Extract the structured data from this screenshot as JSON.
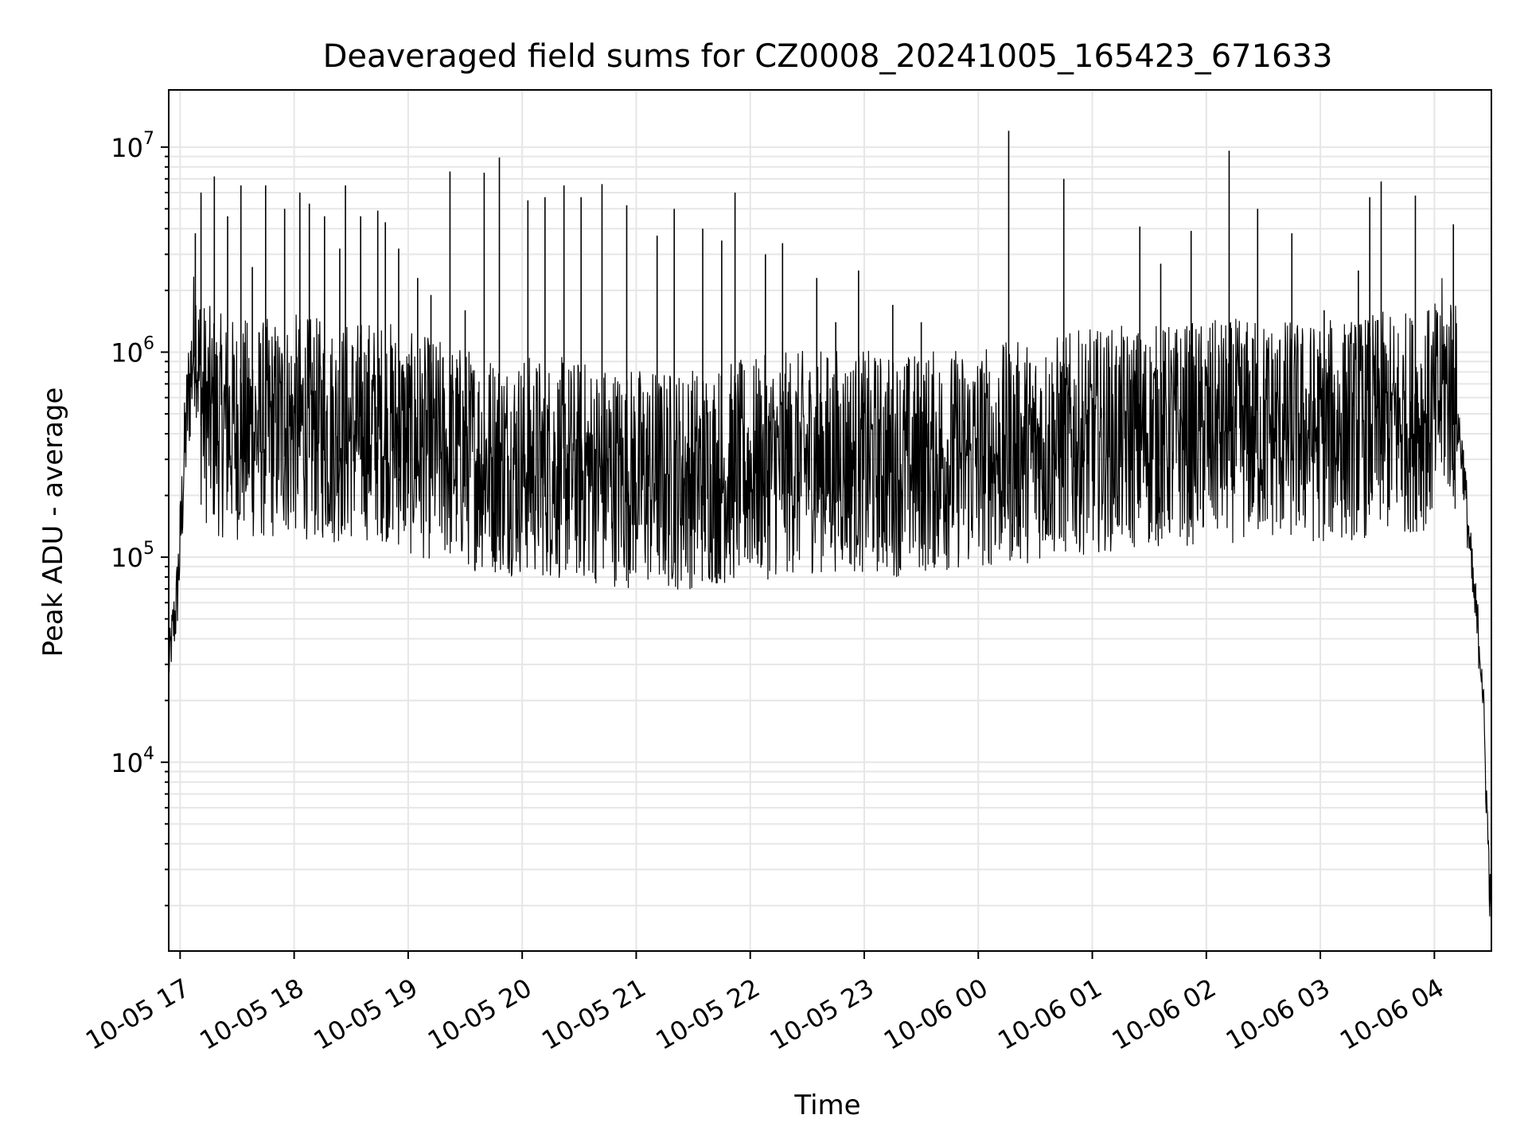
{
  "chart_data": {
    "type": "line",
    "title": "Deaveraged field sums for CZ0008_20241005_165423_671633",
    "xlabel": "Time",
    "ylabel": "Peak ADU - average",
    "y_scale": "log",
    "ylim": [
      1200,
      19000000
    ],
    "xlim": [
      "2024-10-05 16:54",
      "2024-10-06 04:30"
    ],
    "grid": true,
    "line_color": "#000000",
    "grid_color": "#e6e6e6",
    "x_ticks": [
      {
        "value": "2024-10-05 17:00",
        "label": "10-05 17"
      },
      {
        "value": "2024-10-05 18:00",
        "label": "10-05 18"
      },
      {
        "value": "2024-10-05 19:00",
        "label": "10-05 19"
      },
      {
        "value": "2024-10-05 20:00",
        "label": "10-05 20"
      },
      {
        "value": "2024-10-05 21:00",
        "label": "10-05 21"
      },
      {
        "value": "2024-10-05 22:00",
        "label": "10-05 22"
      },
      {
        "value": "2024-10-05 23:00",
        "label": "10-05 23"
      },
      {
        "value": "2024-10-06 00:00",
        "label": "10-06 00"
      },
      {
        "value": "2024-10-06 01:00",
        "label": "10-06 01"
      },
      {
        "value": "2024-10-06 02:00",
        "label": "10-06 02"
      },
      {
        "value": "2024-10-06 03:00",
        "label": "10-06 03"
      },
      {
        "value": "2024-10-06 04:00",
        "label": "10-06 04"
      }
    ],
    "y_ticks": [
      {
        "value": 10000,
        "base": "10",
        "exp": "4"
      },
      {
        "value": 100000,
        "base": "10",
        "exp": "5"
      },
      {
        "value": 1000000,
        "base": "10",
        "exp": "6"
      },
      {
        "value": 10000000,
        "base": "10",
        "exp": "7"
      }
    ],
    "series": [
      {
        "x": [
          "2024-10-05 16:54",
          "2024-10-05 16:56",
          "2024-10-05 16:58",
          "2024-10-05 17:00",
          "2024-10-05 17:02",
          "2024-10-05 17:04",
          "2024-10-05 17:06",
          "2024-10-05 17:08",
          "2024-10-05 17:10",
          "2024-10-05 17:12",
          "2024-10-05 17:15",
          "2024-10-05 17:20",
          "2024-10-05 17:30",
          "2024-10-05 17:40",
          "2024-10-05 17:50",
          "2024-10-05 18:00",
          "2024-10-05 18:10",
          "2024-10-05 18:20",
          "2024-10-05 18:30",
          "2024-10-05 18:40",
          "2024-10-05 18:50",
          "2024-10-05 19:00",
          "2024-10-05 19:15",
          "2024-10-05 19:30",
          "2024-10-05 19:45",
          "2024-10-05 20:00",
          "2024-10-05 20:15",
          "2024-10-05 20:30",
          "2024-10-05 20:45",
          "2024-10-05 21:00",
          "2024-10-05 21:15",
          "2024-10-05 21:30",
          "2024-10-05 21:45",
          "2024-10-05 22:00",
          "2024-10-05 22:15",
          "2024-10-05 22:30",
          "2024-10-05 22:45",
          "2024-10-05 23:00",
          "2024-10-05 23:15",
          "2024-10-05 23:30",
          "2024-10-05 23:45",
          "2024-10-06 00:00",
          "2024-10-06 00:15",
          "2024-10-06 00:30",
          "2024-10-06 00:45",
          "2024-10-06 01:00",
          "2024-10-06 01:15",
          "2024-10-06 01:30",
          "2024-10-06 01:45",
          "2024-10-06 02:00",
          "2024-10-06 02:15",
          "2024-10-06 02:30",
          "2024-10-06 02:45",
          "2024-10-06 03:00",
          "2024-10-06 03:15",
          "2024-10-06 03:30",
          "2024-10-06 03:45",
          "2024-10-06 04:00",
          "2024-10-06 04:05",
          "2024-10-06 04:10",
          "2024-10-06 04:15",
          "2024-10-06 04:20",
          "2024-10-06 04:25",
          "2024-10-06 04:30"
        ],
        "y": [
          30000,
          45000,
          60000,
          120000,
          300000,
          600000,
          900000,
          1500000,
          800000,
          600000,
          550000,
          500000,
          480000,
          470000,
          480000,
          500000,
          480000,
          460000,
          470000,
          480000,
          470000,
          400000,
          380000,
          350000,
          330000,
          320000,
          310000,
          300000,
          290000,
          280000,
          270000,
          280000,
          290000,
          300000,
          320000,
          330000,
          340000,
          330000,
          320000,
          330000,
          340000,
          350000,
          360000,
          380000,
          400000,
          420000,
          430000,
          440000,
          450000,
          460000,
          470000,
          480000,
          470000,
          460000,
          480000,
          500000,
          520000,
          550000,
          800000,
          700000,
          300000,
          80000,
          30000,
          1500
        ],
        "spikes": [
          [
            "2024-10-05 17:08",
            3800000
          ],
          [
            "2024-10-05 17:11",
            6000000
          ],
          [
            "2024-10-05 17:18",
            7200000
          ],
          [
            "2024-10-05 17:25",
            4600000
          ],
          [
            "2024-10-05 17:32",
            6500000
          ],
          [
            "2024-10-05 17:38",
            2600000
          ],
          [
            "2024-10-05 17:45",
            6500000
          ],
          [
            "2024-10-05 17:55",
            5000000
          ],
          [
            "2024-10-05 18:03",
            6000000
          ],
          [
            "2024-10-05 18:08",
            5300000
          ],
          [
            "2024-10-05 18:16",
            4600000
          ],
          [
            "2024-10-05 18:24",
            3200000
          ],
          [
            "2024-10-05 18:27",
            6500000
          ],
          [
            "2024-10-05 18:35",
            4600000
          ],
          [
            "2024-10-05 18:44",
            4900000
          ],
          [
            "2024-10-05 18:48",
            4300000
          ],
          [
            "2024-10-05 18:55",
            3200000
          ],
          [
            "2024-10-05 19:05",
            2300000
          ],
          [
            "2024-10-05 19:12",
            1900000
          ],
          [
            "2024-10-05 19:22",
            7600000
          ],
          [
            "2024-10-05 19:30",
            1600000
          ],
          [
            "2024-10-05 19:40",
            7500000
          ],
          [
            "2024-10-05 19:48",
            8900000
          ],
          [
            "2024-10-05 20:03",
            5500000
          ],
          [
            "2024-10-05 20:12",
            5700000
          ],
          [
            "2024-10-05 20:22",
            6500000
          ],
          [
            "2024-10-05 20:31",
            5700000
          ],
          [
            "2024-10-05 20:42",
            6600000
          ],
          [
            "2024-10-05 20:55",
            5200000
          ],
          [
            "2024-10-05 21:11",
            3700000
          ],
          [
            "2024-10-05 21:20",
            5000000
          ],
          [
            "2024-10-05 21:35",
            4000000
          ],
          [
            "2024-10-05 21:45",
            3500000
          ],
          [
            "2024-10-05 21:52",
            6000000
          ],
          [
            "2024-10-05 22:08",
            3000000
          ],
          [
            "2024-10-05 22:17",
            3400000
          ],
          [
            "2024-10-05 22:35",
            2300000
          ],
          [
            "2024-10-05 22:45",
            1400000
          ],
          [
            "2024-10-05 22:57",
            2500000
          ],
          [
            "2024-10-05 23:15",
            1700000
          ],
          [
            "2024-10-05 23:30",
            1400000
          ],
          [
            "2024-10-06 00:16",
            12000000
          ],
          [
            "2024-10-06 00:45",
            7000000
          ],
          [
            "2024-10-06 01:25",
            4100000
          ],
          [
            "2024-10-06 01:36",
            2700000
          ],
          [
            "2024-10-06 01:52",
            3900000
          ],
          [
            "2024-10-06 02:12",
            9600000
          ],
          [
            "2024-10-06 02:27",
            5000000
          ],
          [
            "2024-10-06 02:45",
            3800000
          ],
          [
            "2024-10-06 03:02",
            1600000
          ],
          [
            "2024-10-06 03:20",
            2500000
          ],
          [
            "2024-10-06 03:26",
            5700000
          ],
          [
            "2024-10-06 03:32",
            6800000
          ],
          [
            "2024-10-06 03:50",
            5800000
          ],
          [
            "2024-10-06 04:10",
            4200000
          ]
        ]
      }
    ]
  }
}
